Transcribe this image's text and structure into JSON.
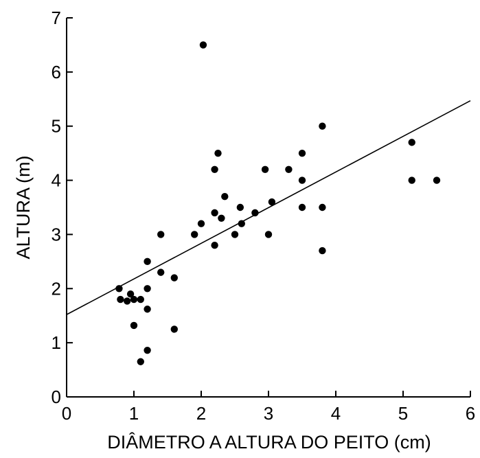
{
  "chart_data": {
    "type": "scatter",
    "title": "",
    "xlabel": "DIÂMETRO A ALTURA DO PEITO (cm)",
    "ylabel": "ALTURA (m)",
    "xlim": [
      0,
      6
    ],
    "ylim": [
      0,
      7
    ],
    "xticks": [
      "0",
      "1",
      "2",
      "3",
      "4",
      "5",
      "6"
    ],
    "yticks": [
      "0",
      "1",
      "2",
      "3",
      "4",
      "5",
      "6",
      "7"
    ],
    "grid": false,
    "legend": "none",
    "colors": {
      "points": "#000000",
      "line": "#000000",
      "axes": "#000000"
    },
    "series": [
      {
        "points": [
          [
            0.78,
            2.0
          ],
          [
            0.8,
            1.8
          ],
          [
            0.9,
            1.77
          ],
          [
            0.95,
            1.9
          ],
          [
            1.0,
            1.8
          ],
          [
            1.0,
            1.32
          ],
          [
            1.1,
            1.8
          ],
          [
            1.1,
            0.65
          ],
          [
            1.2,
            2.5
          ],
          [
            1.2,
            2.0
          ],
          [
            1.2,
            1.62
          ],
          [
            1.2,
            0.86
          ],
          [
            1.4,
            3.0
          ],
          [
            1.4,
            2.3
          ],
          [
            1.6,
            2.2
          ],
          [
            1.6,
            1.25
          ],
          [
            1.9,
            3.0
          ],
          [
            2.0,
            3.2
          ],
          [
            2.03,
            6.5
          ],
          [
            2.2,
            4.2
          ],
          [
            2.2,
            3.4
          ],
          [
            2.2,
            2.8
          ],
          [
            2.25,
            4.5
          ],
          [
            2.3,
            3.3
          ],
          [
            2.35,
            3.7
          ],
          [
            2.5,
            3.0
          ],
          [
            2.58,
            3.5
          ],
          [
            2.6,
            3.2
          ],
          [
            2.8,
            3.4
          ],
          [
            2.95,
            4.2
          ],
          [
            3.0,
            3.0
          ],
          [
            3.05,
            3.6
          ],
          [
            3.3,
            4.2
          ],
          [
            3.5,
            4.5
          ],
          [
            3.5,
            4.0
          ],
          [
            3.5,
            3.5
          ],
          [
            3.8,
            5.0
          ],
          [
            3.8,
            3.5
          ],
          [
            3.8,
            2.7
          ],
          [
            5.13,
            4.7
          ],
          [
            5.13,
            4.0
          ],
          [
            5.5,
            4.0
          ]
        ]
      }
    ],
    "trendline": {
      "type": "linear",
      "x": [
        0,
        6
      ],
      "y": [
        1.52,
        5.47
      ]
    }
  }
}
